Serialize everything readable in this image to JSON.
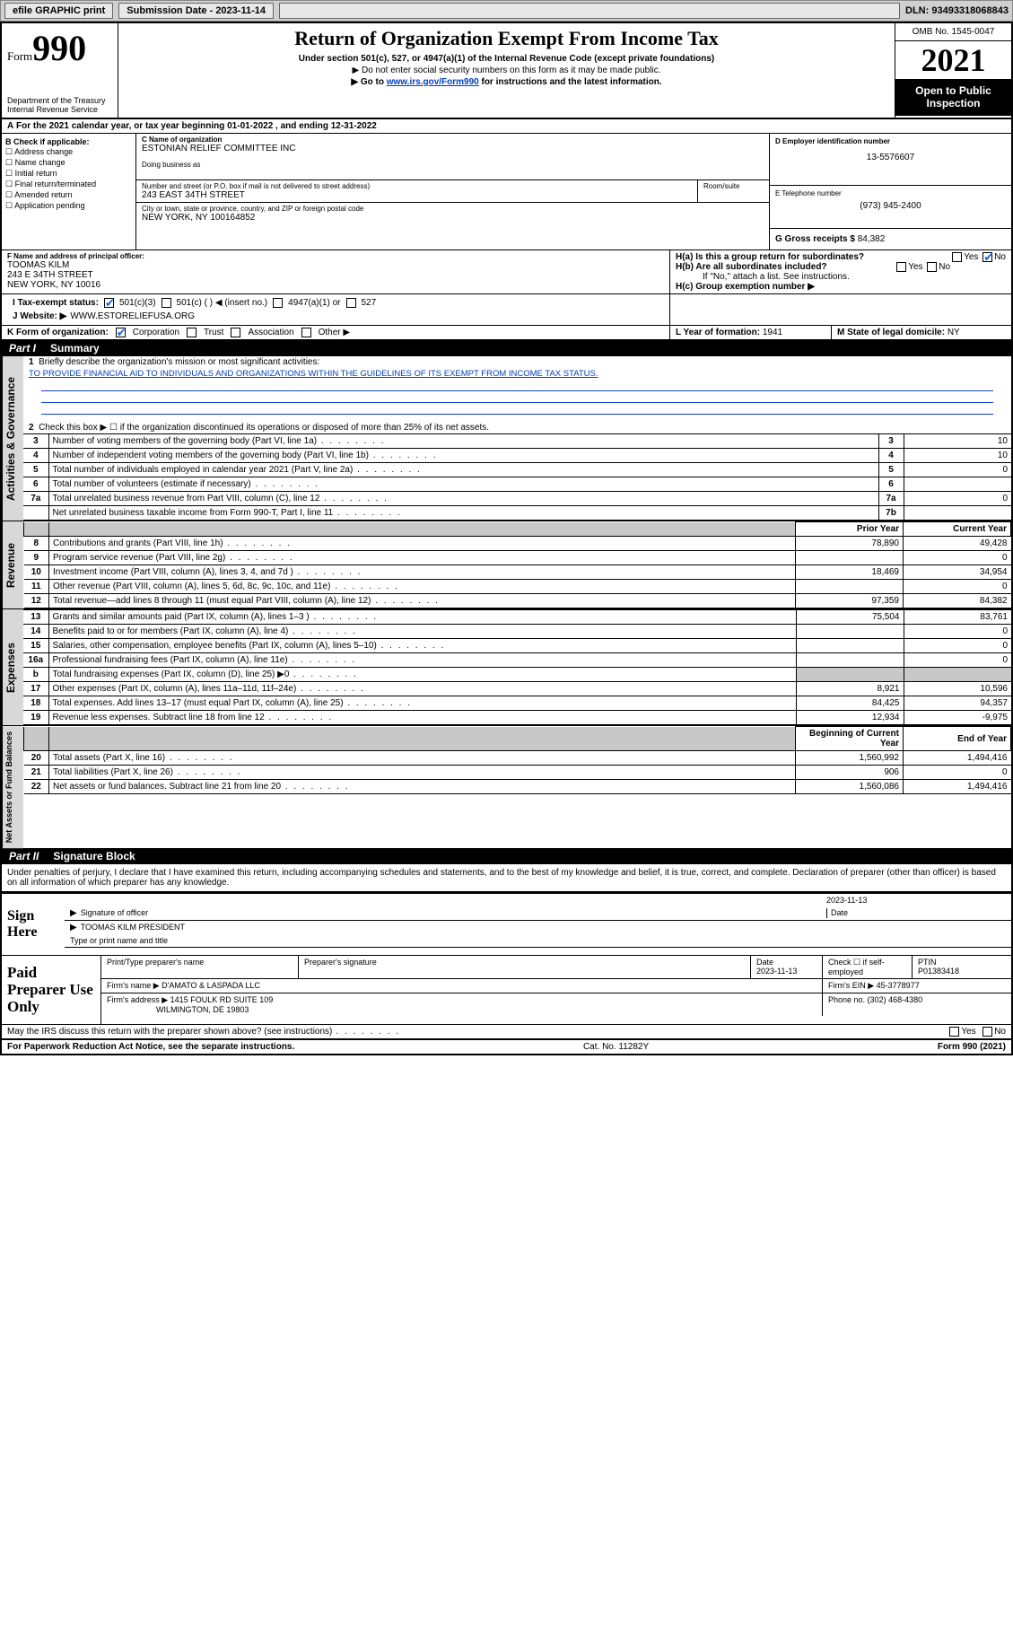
{
  "toolbar": {
    "efile": "efile GRAPHIC print",
    "sub_label": "Submission Date - 2023-11-14",
    "dln": "DLN: 93493318068843"
  },
  "header": {
    "form_small": "Form",
    "form_num": "990",
    "dept": "Department of the Treasury",
    "irs": "Internal Revenue Service",
    "title": "Return of Organization Exempt From Income Tax",
    "sub": "Under section 501(c), 527, or 4947(a)(1) of the Internal Revenue Code (except private foundations)",
    "note1": "▶ Do not enter social security numbers on this form as it may be made public.",
    "note2_pre": "▶ Go to ",
    "note2_link": "www.irs.gov/Form990",
    "note2_post": " for instructions and the latest information.",
    "omb": "OMB No. 1545-0047",
    "year": "2021",
    "open": "Open to Public Inspection"
  },
  "period": {
    "text_a": "For the 2021 calendar year, or tax year beginning ",
    "begin": "01-01-2022",
    "text_b": " , and ending ",
    "end": "12-31-2022",
    "prefix": "A"
  },
  "boxB": {
    "hdr": "B Check if applicable:",
    "opts": [
      "Address change",
      "Name change",
      "Initial return",
      "Final return/terminated",
      "Amended return",
      "Application pending"
    ]
  },
  "boxC": {
    "label": "C Name of organization",
    "name": "ESTONIAN RELIEF COMMITTEE INC",
    "dba_label": "Doing business as",
    "addr_label": "Number and street (or P.O. box if mail is not delivered to street address)",
    "room_label": "Room/suite",
    "addr": "243 EAST 34TH STREET",
    "city_label": "City or town, state or province, country, and ZIP or foreign postal code",
    "city": "NEW YORK, NY  100164852"
  },
  "boxD": {
    "label": "D Employer identification number",
    "val": "13-5576607"
  },
  "boxE": {
    "label": "E Telephone number",
    "val": "(973) 945-2400"
  },
  "boxG": {
    "label": "G Gross receipts $",
    "val": "84,382"
  },
  "boxF": {
    "label": "F  Name and address of principal officer:",
    "name": "TOOMAS KILM",
    "addr1": "243 E 34TH STREET",
    "addr2": "NEW YORK, NY  10016"
  },
  "boxH": {
    "a": "H(a)  Is this a group return for subordinates?",
    "a_yes": "Yes",
    "a_no": "No",
    "b": "H(b)  Are all subordinates included?",
    "b_yes": "Yes",
    "b_no": "No",
    "b_note": "If \"No,\" attach a list. See instructions.",
    "c": "H(c)  Group exemption number ▶"
  },
  "lineI": {
    "label": "I   Tax-exempt status:",
    "o1": "501(c)(3)",
    "o2": "501(c) (  ) ◀ (insert no.)",
    "o3": "4947(a)(1) or",
    "o4": "527"
  },
  "lineJ": {
    "label": "J   Website: ▶",
    "val": "WWW.ESTORELIEFUSA.ORG"
  },
  "lineK": {
    "label": "K Form of organization:",
    "o1": "Corporation",
    "o2": "Trust",
    "o3": "Association",
    "o4": "Other ▶"
  },
  "lineL": {
    "label": "L Year of formation:",
    "val": "1941"
  },
  "lineM": {
    "label": "M State of legal domicile:",
    "val": "NY"
  },
  "part1": {
    "num": "Part I",
    "title": "Summary"
  },
  "summary": {
    "l1": "Briefly describe the organization's mission or most significant activities:",
    "mission": "TO PROVIDE FINANCIAL AID TO INDIVIDUALS AND ORGANIZATIONS WITHIN THE GUIDELINES OF ITS EXEMPT FROM INCOME TAX STATUS.",
    "l2": "Check this box ▶ ☐  if the organization discontinued its operations or disposed of more than 25% of its net assets.",
    "rows": [
      {
        "n": "3",
        "t": "Number of voting members of the governing body (Part VI, line 1a)",
        "r": "3",
        "v": "10"
      },
      {
        "n": "4",
        "t": "Number of independent voting members of the governing body (Part VI, line 1b)",
        "r": "4",
        "v": "10"
      },
      {
        "n": "5",
        "t": "Total number of individuals employed in calendar year 2021 (Part V, line 2a)",
        "r": "5",
        "v": "0"
      },
      {
        "n": "6",
        "t": "Total number of volunteers (estimate if necessary)",
        "r": "6",
        "v": ""
      },
      {
        "n": "7a",
        "t": "Total unrelated business revenue from Part VIII, column (C), line 12",
        "r": "7a",
        "v": "0"
      },
      {
        "n": "",
        "t": "Net unrelated business taxable income from Form 990-T, Part I, line 11",
        "r": "7b",
        "v": ""
      }
    ],
    "py": "Prior Year",
    "cy": "Current Year",
    "rev": [
      {
        "n": "8",
        "t": "Contributions and grants (Part VIII, line 1h)",
        "p": "78,890",
        "c": "49,428"
      },
      {
        "n": "9",
        "t": "Program service revenue (Part VIII, line 2g)",
        "p": "",
        "c": "0"
      },
      {
        "n": "10",
        "t": "Investment income (Part VIII, column (A), lines 3, 4, and 7d )",
        "p": "18,469",
        "c": "34,954"
      },
      {
        "n": "11",
        "t": "Other revenue (Part VIII, column (A), lines 5, 6d, 8c, 9c, 10c, and 11e)",
        "p": "",
        "c": "0"
      },
      {
        "n": "12",
        "t": "Total revenue—add lines 8 through 11 (must equal Part VIII, column (A), line 12)",
        "p": "97,359",
        "c": "84,382"
      }
    ],
    "exp": [
      {
        "n": "13",
        "t": "Grants and similar amounts paid (Part IX, column (A), lines 1–3 )",
        "p": "75,504",
        "c": "83,761"
      },
      {
        "n": "14",
        "t": "Benefits paid to or for members (Part IX, column (A), line 4)",
        "p": "",
        "c": "0"
      },
      {
        "n": "15",
        "t": "Salaries, other compensation, employee benefits (Part IX, column (A), lines 5–10)",
        "p": "",
        "c": "0"
      },
      {
        "n": "16a",
        "t": "Professional fundraising fees (Part IX, column (A), line 11e)",
        "p": "",
        "c": "0"
      },
      {
        "n": "b",
        "t": "Total fundraising expenses (Part IX, column (D), line 25) ▶0",
        "p": "shade",
        "c": "shade"
      },
      {
        "n": "17",
        "t": "Other expenses (Part IX, column (A), lines 11a–11d, 11f–24e)",
        "p": "8,921",
        "c": "10,596"
      },
      {
        "n": "18",
        "t": "Total expenses. Add lines 13–17 (must equal Part IX, column (A), line 25)",
        "p": "84,425",
        "c": "94,357"
      },
      {
        "n": "19",
        "t": "Revenue less expenses. Subtract line 18 from line 12",
        "p": "12,934",
        "c": "-9,975"
      }
    ],
    "by": "Beginning of Current Year",
    "ey": "End of Year",
    "net": [
      {
        "n": "20",
        "t": "Total assets (Part X, line 16)",
        "p": "1,560,992",
        "c": "1,494,416"
      },
      {
        "n": "21",
        "t": "Total liabilities (Part X, line 26)",
        "p": "906",
        "c": "0"
      },
      {
        "n": "22",
        "t": "Net assets or fund balances. Subtract line 21 from line 20",
        "p": "1,560,086",
        "c": "1,494,416"
      }
    ],
    "side_ag": "Activities & Governance",
    "side_rev": "Revenue",
    "side_exp": "Expenses",
    "side_net": "Net Assets or Fund Balances"
  },
  "part2": {
    "num": "Part II",
    "title": "Signature Block"
  },
  "disclaimer": "Under penalties of perjury, I declare that I have examined this return, including accompanying schedules and statements, and to the best of my knowledge and belief, it is true, correct, and complete. Declaration of preparer (other than officer) is based on all information of which preparer has any knowledge.",
  "sign": {
    "here": "Sign Here",
    "sig_label": "Signature of officer",
    "date_label": "Date",
    "date": "2023-11-13",
    "name": "TOOMAS KILM  PRESIDENT",
    "name_label": "Type or print name and title"
  },
  "paid": {
    "title": "Paid Preparer Use Only",
    "h1": "Print/Type preparer's name",
    "h2": "Preparer's signature",
    "h3": "Date",
    "date": "2023-11-13",
    "h4": "Check ☐ if self-employed",
    "h5": "PTIN",
    "ptin": "P01383418",
    "firm_label": "Firm's name    ▶",
    "firm": "D'AMATO & LASPADA LLC",
    "ein_label": "Firm's EIN ▶",
    "ein": "45-3778977",
    "addr_label": "Firm's address ▶",
    "addr1": "1415 FOULK RD SUITE 109",
    "addr2": "WILMINGTON, DE  19803",
    "phone_label": "Phone no.",
    "phone": "(302) 468-4380"
  },
  "may": {
    "text": "May the IRS discuss this return with the preparer shown above? (see instructions)",
    "yes": "Yes",
    "no": "No"
  },
  "footer": {
    "l": "For Paperwork Reduction Act Notice, see the separate instructions.",
    "m": "Cat. No. 11282Y",
    "r": "Form 990 (2021)"
  },
  "colors": {
    "link": "#0040c0",
    "shade": "#c8c8c8"
  }
}
